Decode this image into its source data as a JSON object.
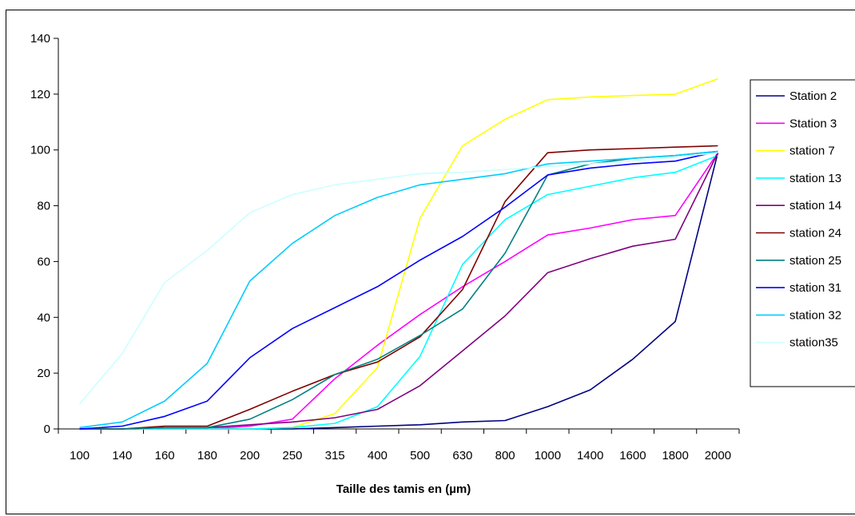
{
  "chart_data": {
    "type": "line",
    "title": "",
    "xlabel": "Taille des tamis en (µm)",
    "ylabel": "",
    "ylim": [
      0,
      140
    ],
    "yticks": [
      0,
      20,
      40,
      60,
      80,
      100,
      120,
      140
    ],
    "categories": [
      "100",
      "140",
      "160",
      "180",
      "200",
      "250",
      "315",
      "400",
      "500",
      "630",
      "800",
      "1000",
      "1400",
      "1600",
      "1800",
      "2000"
    ],
    "legend_position": "right",
    "grid": false,
    "series": [
      {
        "name": "Station 2",
        "color": "#000080",
        "values": [
          0,
          0,
          0,
          0,
          0,
          0,
          0.5,
          1,
          1.5,
          2.5,
          3,
          8,
          14,
          25,
          38.5,
          99
        ]
      },
      {
        "name": "Station 3",
        "color": "#FF00FF",
        "values": [
          0,
          0,
          0,
          0,
          1,
          3.5,
          18,
          30,
          41,
          51,
          60,
          69.5,
          72,
          75,
          76.5,
          99
        ]
      },
      {
        "name": "station 7",
        "color": "#FFFF00",
        "values": [
          0,
          0,
          0,
          0,
          0,
          0.5,
          5.5,
          22,
          75.5,
          101.5,
          111,
          118,
          119,
          119.5,
          120,
          125.5
        ]
      },
      {
        "name": "station 13",
        "color": "#00FFFF",
        "values": [
          0,
          0,
          0,
          0,
          0,
          0.5,
          2,
          8,
          26,
          59,
          75,
          84,
          87,
          90,
          92,
          98
        ]
      },
      {
        "name": "station 14",
        "color": "#800080",
        "values": [
          0,
          0,
          0.5,
          0.5,
          1.5,
          2.5,
          4,
          7,
          15.5,
          28,
          40.5,
          56,
          61,
          65.5,
          68,
          99
        ]
      },
      {
        "name": "station 24",
        "color": "#800000",
        "values": [
          0,
          0,
          1,
          1,
          7,
          13.5,
          19.5,
          24,
          33,
          50,
          81.5,
          99,
          100,
          100.5,
          101,
          101.5
        ]
      },
      {
        "name": "station 25",
        "color": "#008080",
        "values": [
          0,
          0,
          0.5,
          0.5,
          3.5,
          10.5,
          19.5,
          25,
          33.5,
          43,
          63,
          91,
          95,
          97,
          98,
          99.5
        ]
      },
      {
        "name": "station 31",
        "color": "#0000FF",
        "values": [
          0,
          1,
          4.5,
          10,
          25.5,
          36,
          43.5,
          51,
          60.5,
          69,
          79.5,
          91,
          93.5,
          95,
          96,
          99.5
        ]
      },
      {
        "name": "station 32",
        "color": "#00CCFF",
        "values": [
          0.5,
          2.5,
          10,
          23.5,
          53,
          66.5,
          76.5,
          83,
          87.5,
          89.5,
          91.5,
          95,
          96,
          97,
          98,
          99.5
        ]
      },
      {
        "name": "station35",
        "color": "#CCFFFF",
        "values": [
          9,
          27,
          52.5,
          64,
          77.5,
          84,
          87.5,
          89.5,
          91.5,
          92,
          93,
          94,
          95,
          96,
          97.5,
          99
        ]
      }
    ]
  }
}
